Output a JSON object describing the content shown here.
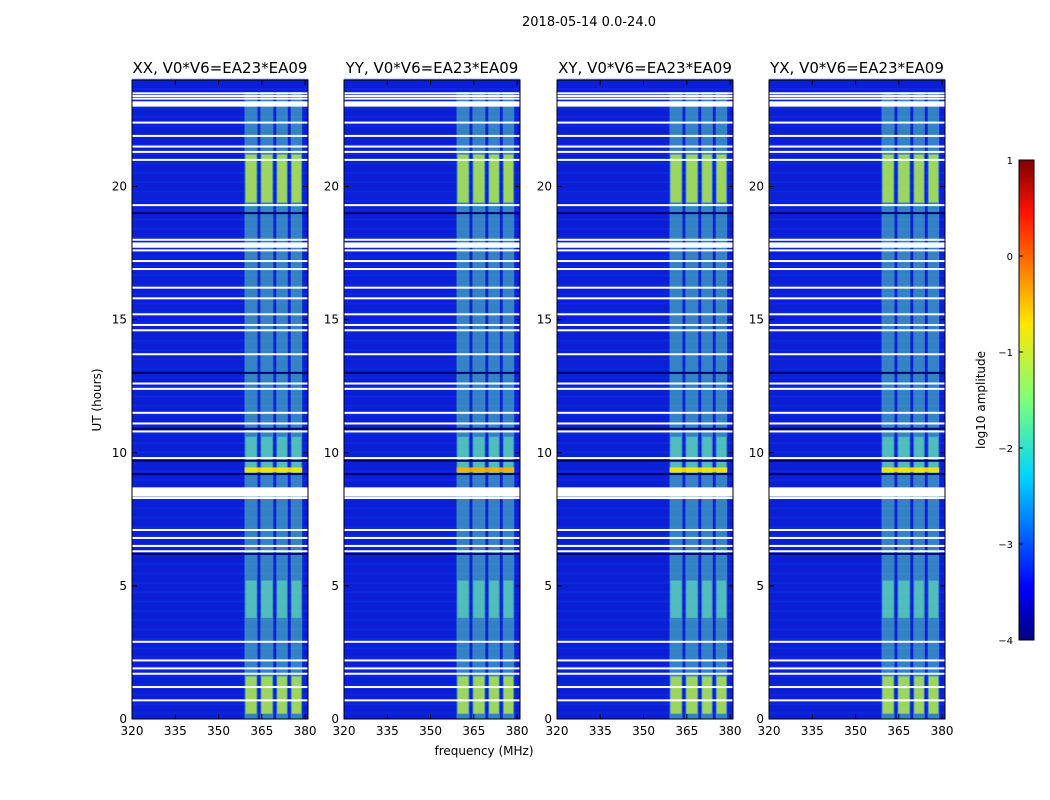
{
  "chart_data": {
    "type": "heatmap",
    "suptitle": "2018-05-14 0.0-24.0",
    "panels": [
      {
        "title": "XX, V0*V6=EA23*EA09",
        "pol": "XX"
      },
      {
        "title": "YY, V0*V6=EA23*EA09",
        "pol": "YY"
      },
      {
        "title": "XY, V0*V6=EA23*EA09",
        "pol": "XY"
      },
      {
        "title": "YX, V0*V6=EA23*EA09",
        "pol": "YX"
      }
    ],
    "xlabel": "frequency (MHz)",
    "ylabel": "UT (hours)",
    "xlim": [
      320,
      381
    ],
    "ylim": [
      0,
      24
    ],
    "xticks": [
      320,
      335,
      350,
      365,
      380
    ],
    "yticks": [
      0,
      5,
      10,
      15,
      20
    ],
    "colorbar": {
      "label": "log10 amplitude",
      "ticks": [
        1,
        0,
        -1,
        -2,
        -3,
        -4
      ],
      "tick_labels": [
        "1",
        "0",
        "−1",
        "−2",
        "−3",
        "−4"
      ],
      "range": [
        -4,
        1
      ],
      "colormap": "jet"
    },
    "rfi_band_mhz": [
      359,
      379
    ],
    "bright_sub_bands_mhz": [
      [
        359,
        363.5
      ],
      [
        364.5,
        369
      ],
      [
        370,
        374
      ],
      [
        375,
        379
      ]
    ],
    "flagged_ut_hours": [
      0.7,
      1.2,
      1.7,
      1.9,
      2.2,
      2.9,
      6.3,
      6.5,
      6.8,
      7.1,
      8.3,
      8.4,
      8.5,
      8.6,
      9.8,
      10.8,
      11.1,
      11.5,
      12.4,
      12.6,
      13.7,
      14.6,
      14.8,
      15.2,
      15.8,
      16.2,
      16.9,
      17.2,
      17.6,
      17.8,
      18.0,
      19.3,
      21.0,
      21.3,
      21.5,
      21.9,
      22.4,
      23.3,
      23.4,
      23.5
    ],
    "colors": {
      "background": "#0a1fd6",
      "rfi": "#5ad1b8",
      "rfi_strong": "#bff23c",
      "flag": "#ffffff"
    }
  }
}
